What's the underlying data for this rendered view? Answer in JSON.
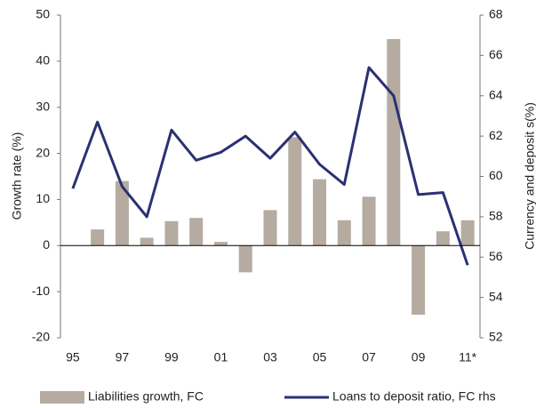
{
  "chart_data": {
    "type": "bar",
    "categories": [
      "95",
      null,
      "97",
      null,
      "99",
      null,
      "01",
      null,
      "03",
      null,
      "05",
      null,
      "07",
      null,
      "09",
      null,
      "11*"
    ],
    "y_label": "Growth rate (%)",
    "y2_label": "Currency and deposit s(%)",
    "ylim": [
      -20,
      50
    ],
    "yticks": [
      -20,
      -10,
      0,
      10,
      20,
      30,
      40,
      50
    ],
    "y2lim": [
      52,
      68
    ],
    "y2ticks": [
      52,
      54,
      56,
      58,
      60,
      62,
      64,
      66,
      68
    ],
    "series": [
      {
        "name": "Liabilities growth, FC",
        "type": "bar",
        "color": "#b5aba0",
        "axis": "y",
        "values": [
          null,
          3.5,
          14,
          1.7,
          5.3,
          6,
          0.8,
          -5.8,
          7.7,
          23.5,
          14.4,
          5.5,
          10.6,
          44.8,
          -15,
          3.1,
          5.5
        ]
      },
      {
        "name": "Loans to deposit ratio, FC rhs",
        "type": "line",
        "color": "#2b3171",
        "axis": "y2",
        "values": [
          59.4,
          62.7,
          59.5,
          58.0,
          62.3,
          60.8,
          61.2,
          62.0,
          60.9,
          62.2,
          60.6,
          59.6,
          65.4,
          64.0,
          59.1,
          59.2,
          55.6
        ]
      }
    ]
  }
}
